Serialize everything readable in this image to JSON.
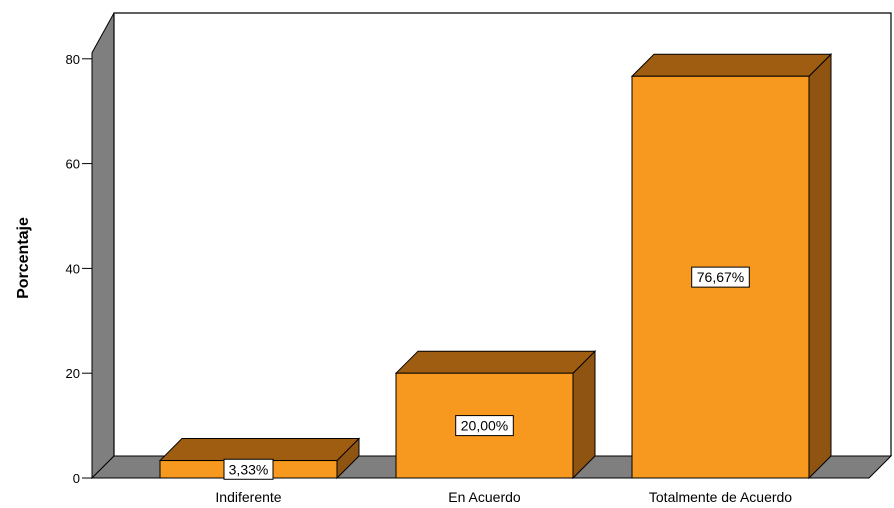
{
  "chart_data": {
    "type": "bar",
    "categories": [
      "Indiferente",
      "En Acuerdo",
      "Totalmente de Acuerdo"
    ],
    "values": [
      3.33,
      20.0,
      76.67
    ],
    "data_labels": [
      "3,33%",
      "20,00%",
      "76,67%"
    ],
    "title": "",
    "xlabel": "",
    "ylabel": "Porcentaje",
    "ylim": [
      0,
      80
    ],
    "yticks": [
      0,
      20,
      40,
      60,
      80
    ],
    "grid": false,
    "style": "3d",
    "colors": {
      "bar_front": "#F7991E",
      "bar_top": "#9E5D10",
      "bar_side": "#8F5412",
      "wall": "#7F7F7F",
      "floor": "#7F7F7F"
    }
  }
}
